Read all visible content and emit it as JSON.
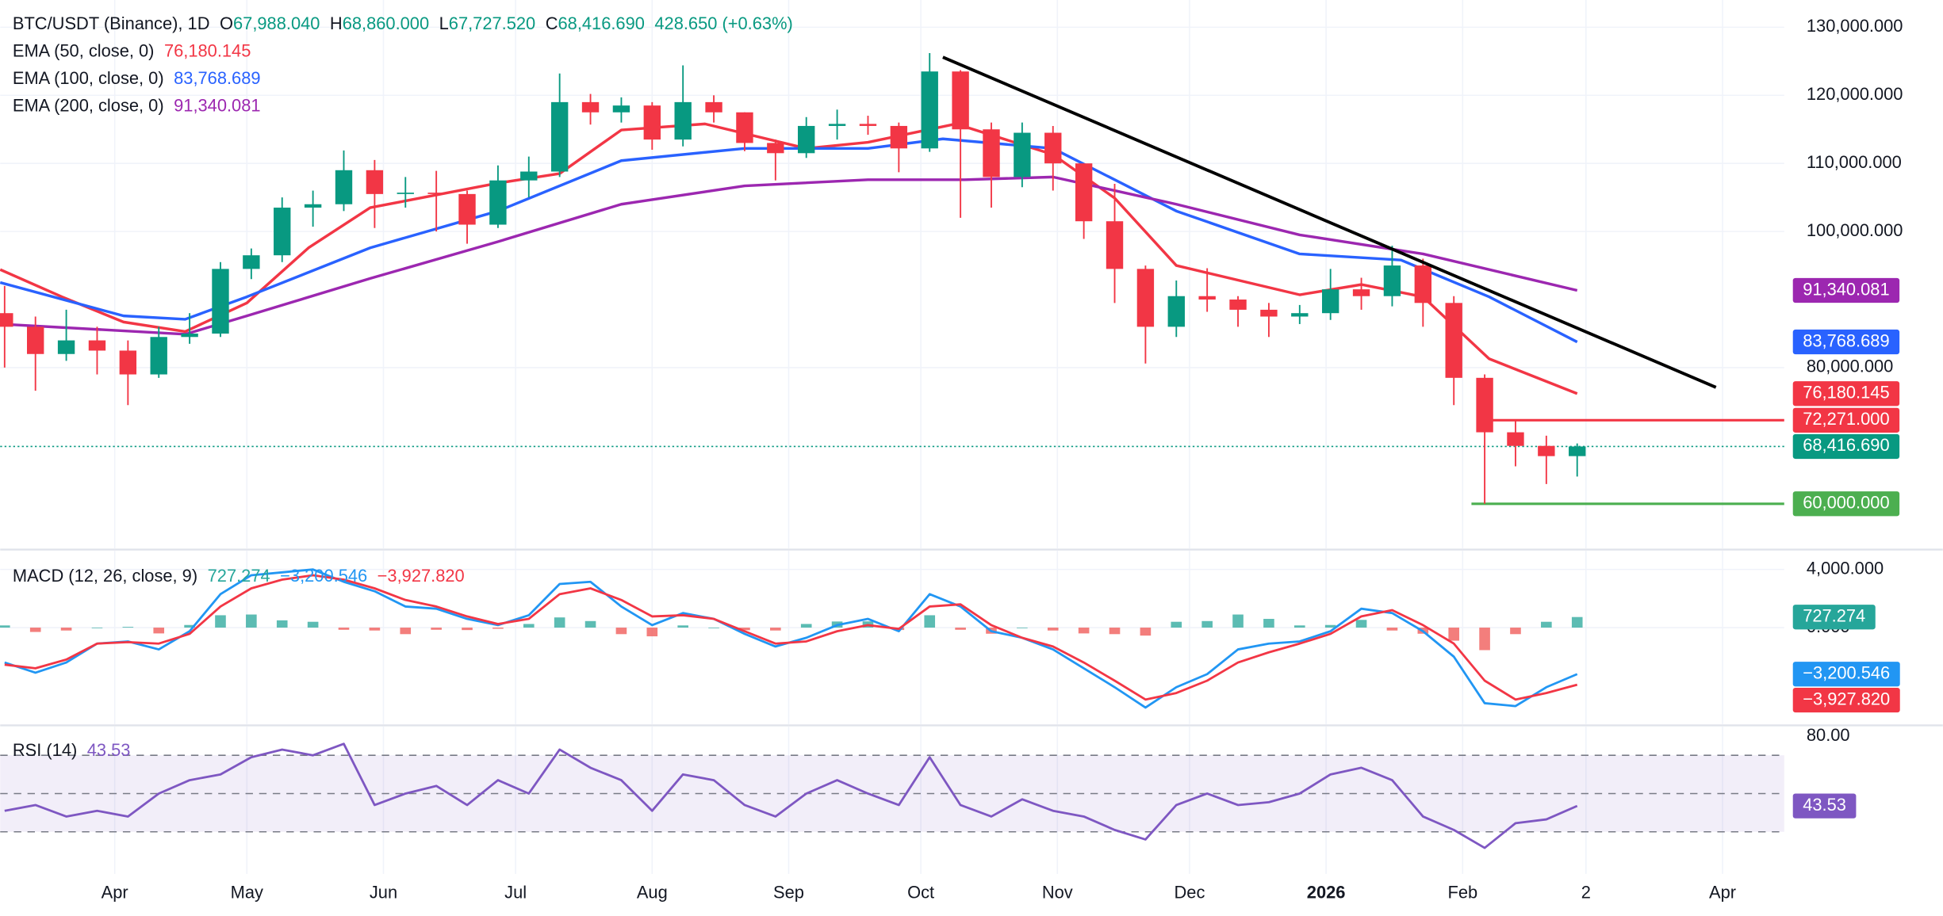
{
  "chart_data": [
    {
      "type": "candlestick",
      "title": "BTC/USDT (Binance), 1D",
      "ohlc": [
        {
          "label": "O",
          "value": "67,988.040"
        },
        {
          "label": "H",
          "value": "68,860.000"
        },
        {
          "label": "L",
          "value": "67,727.520"
        },
        {
          "label": "C",
          "value": "68,416.690"
        }
      ],
      "change": "428.650 (+0.63%)",
      "change_color": "#089981",
      "up_color": "#089981",
      "down_color": "#f23645",
      "xlim": [
        5,
        410
      ],
      "ylim": [
        53450,
        134000
      ],
      "yticks": [
        {
          "value": 80000,
          "label": "80,000.000"
        },
        {
          "value": 100000,
          "label": "100,000.000"
        },
        {
          "value": 110000,
          "label": "110,000.000"
        },
        {
          "value": 120000,
          "label": "120,000.000"
        },
        {
          "value": 130000,
          "label": "130,000.000"
        }
      ],
      "grid": true,
      "x": [
        6,
        13,
        20,
        27,
        34,
        41,
        48,
        55,
        62,
        69,
        76,
        83,
        90,
        97,
        104,
        111,
        118,
        125,
        132,
        139,
        146,
        153,
        160,
        167,
        174,
        181,
        188,
        195,
        202,
        209,
        216,
        223,
        230,
        237,
        244,
        251,
        258,
        265,
        272,
        279,
        286,
        293,
        300,
        307,
        314,
        321,
        328,
        335,
        342,
        349,
        356,
        363
      ],
      "open": [
        88000,
        86000,
        82000,
        84000,
        82500,
        79000,
        84500,
        85000,
        94500,
        96500,
        103500,
        104000,
        109000,
        105500,
        105700,
        105500,
        101000,
        107500,
        108800,
        119000,
        117500,
        118500,
        113500,
        119000,
        117500,
        113000,
        111500,
        115500,
        115800,
        115500,
        112200,
        123500,
        115000,
        108000,
        114500,
        110000,
        101500,
        94500,
        86000,
        90500,
        90000,
        88500,
        87500,
        88000,
        91500,
        90500,
        95000,
        89500,
        78500,
        70500,
        68500,
        67000
      ],
      "high": [
        92000,
        87500,
        88500,
        86000,
        84000,
        86000,
        88000,
        95500,
        97500,
        105000,
        106000,
        111900,
        110500,
        108000,
        108900,
        106000,
        109700,
        111000,
        123200,
        120200,
        119700,
        119000,
        124400,
        120000,
        117500,
        113500,
        116800,
        117900,
        117000,
        116000,
        126200,
        123700,
        116000,
        116000,
        115500,
        110000,
        107000,
        95000,
        92800,
        94600,
        90500,
        89500,
        89200,
        94500,
        93200,
        97900,
        96000,
        90500,
        79000,
        72300,
        70000,
        68860
      ],
      "low": [
        80000,
        76600,
        81000,
        79000,
        74500,
        78500,
        83500,
        84500,
        93000,
        95500,
        100700,
        103000,
        100500,
        103500,
        100000,
        98200,
        100500,
        105000,
        108000,
        115700,
        116000,
        112000,
        112500,
        116000,
        111800,
        107500,
        110800,
        113500,
        114200,
        108700,
        111700,
        102000,
        103500,
        106500,
        106000,
        98900,
        89500,
        80600,
        84500,
        88200,
        86000,
        84500,
        86400,
        87000,
        88500,
        89000,
        86000,
        74500,
        60000,
        65500,
        62900,
        64000
      ],
      "close": [
        86000,
        82000,
        84000,
        82500,
        79000,
        84500,
        85000,
        94500,
        96500,
        103500,
        104000,
        109000,
        105500,
        105700,
        105500,
        101000,
        107500,
        108800,
        119000,
        117500,
        118500,
        113500,
        119000,
        117500,
        113000,
        111500,
        115500,
        115800,
        115500,
        112200,
        123500,
        115000,
        108000,
        114500,
        110000,
        101500,
        94500,
        86000,
        90500,
        90000,
        88500,
        87500,
        88000,
        91500,
        90500,
        95000,
        89500,
        78500,
        70500,
        68500,
        67000,
        68416.69
      ],
      "series": [
        {
          "name": "EMA (50, close, 0)",
          "color": "#f23645",
          "last_label": "76,180.145",
          "x": [
            5,
            19,
            33,
            47,
            61,
            75,
            89,
            118,
            132,
            146,
            165,
            188,
            202,
            222,
            244,
            258,
            272,
            300,
            314,
            328,
            343,
            363
          ],
          "values": [
            94400,
            90400,
            86700,
            85300,
            89500,
            97600,
            103500,
            107100,
            108500,
            114900,
            115800,
            112200,
            113100,
            115800,
            111300,
            104900,
            95000,
            90700,
            92200,
            90400,
            81300,
            76180.145
          ]
        },
        {
          "name": "EMA (100, close, 0)",
          "color": "#2962ff",
          "last_label": "83,768.689",
          "x": [
            5,
            33,
            47,
            61,
            89,
            118,
            146,
            174,
            202,
            219,
            244,
            272,
            300,
            323,
            343,
            363
          ],
          "values": [
            92500,
            87600,
            87100,
            90400,
            97600,
            103000,
            110400,
            112200,
            112200,
            113600,
            112200,
            103000,
            96700,
            95800,
            90400,
            83768.689
          ]
        },
        {
          "name": "EMA (200, close, 0)",
          "color": "#9c27b0",
          "last_label": "91,340.081",
          "x": [
            5,
            47,
            61,
            89,
            118,
            146,
            174,
            202,
            224,
            244,
            272,
            300,
            328,
            363
          ],
          "values": [
            86400,
            84900,
            87600,
            93100,
            98500,
            104000,
            106700,
            107600,
            107600,
            108000,
            104000,
            99500,
            96700,
            91340.081
          ]
        }
      ],
      "trendline": {
        "color": "#000000",
        "x": [
          219,
          394.5
        ],
        "y": [
          125600,
          77100
        ]
      },
      "levels": [
        {
          "value": 72271,
          "label": "72,271.000",
          "color": "#f23645",
          "from": 341.6
        },
        {
          "value": 68416.69,
          "label": "68,416.690",
          "color": "#089981",
          "style": "dotted"
        },
        {
          "value": 60000,
          "label": "60,000.000",
          "color": "#4caf50",
          "from": 339
        }
      ]
    },
    {
      "type": "macd",
      "title": "MACD (12, 26, close, 9)",
      "xlim": [
        5,
        410
      ],
      "ylim": [
        -6640,
        5280
      ],
      "yticks": [
        {
          "value": 4000,
          "label": "4,000.000"
        },
        {
          "value": 0,
          "label": "0.000"
        }
      ],
      "grid": true,
      "x": [
        6,
        13,
        20,
        27,
        34,
        41,
        48,
        55,
        62,
        69,
        76,
        83,
        90,
        97,
        104,
        111,
        118,
        125,
        132,
        139,
        146,
        153,
        160,
        167,
        174,
        181,
        188,
        195,
        202,
        209,
        216,
        223,
        230,
        237,
        244,
        251,
        258,
        265,
        272,
        279,
        286,
        293,
        300,
        307,
        314,
        321,
        328,
        335,
        342,
        349,
        356,
        363
      ],
      "histogram": {
        "color": "#26a69a",
        "negative_color": "#ef5350",
        "last_label": "727.274",
        "values": [
          150,
          -300,
          -200,
          0,
          50,
          -400,
          180,
          850,
          900,
          500,
          400,
          -150,
          -200,
          -450,
          -150,
          -170,
          -80,
          250,
          700,
          450,
          -450,
          -600,
          150,
          0,
          -180,
          -200,
          250,
          420,
          430,
          -165,
          850,
          -150,
          -420,
          0,
          -200,
          -400,
          -450,
          -550,
          400,
          450,
          900,
          600,
          150,
          180,
          530,
          -200,
          -420,
          -900,
          -1550,
          -450,
          400,
          727.274
        ]
      },
      "series": [
        {
          "color": "#2196f3",
          "last_label": "−3,200.546",
          "values": [
            -2400,
            -3100,
            -2400,
            -1100,
            -950,
            -1500,
            -250,
            2300,
            3600,
            3800,
            4000,
            3150,
            2500,
            1450,
            1300,
            600,
            170,
            850,
            3000,
            3150,
            1450,
            170,
            1000,
            600,
            -430,
            -1300,
            -700,
            170,
            600,
            -250,
            2300,
            1450,
            -250,
            -700,
            -1500,
            -2800,
            -4100,
            -5500,
            -4100,
            -3200,
            -1500,
            -1100,
            -950,
            -250,
            1300,
            1000,
            -250,
            -2000,
            -5200,
            -5400,
            -4100,
            -3200.546
          ]
        },
        {
          "color": "#f23645",
          "last_label": "−3,927.820",
          "values": [
            -2550,
            -2800,
            -2200,
            -1100,
            -1000,
            -1100,
            -430,
            1450,
            2700,
            3300,
            3600,
            3300,
            2700,
            1900,
            1450,
            770,
            250,
            600,
            2300,
            2700,
            1900,
            770,
            850,
            600,
            -250,
            -1100,
            -950,
            -250,
            170,
            -85,
            1450,
            1600,
            170,
            -700,
            -1300,
            -2400,
            -3650,
            -4950,
            -4500,
            -3650,
            -2400,
            -1700,
            -1100,
            -430,
            770,
            1200,
            170,
            -1100,
            -3650,
            -4950,
            -4500,
            -3927.82
          ]
        }
      ]
    },
    {
      "type": "line",
      "title": "RSI (14)",
      "xlim": [
        5,
        410
      ],
      "ylim": [
        8,
        85
      ],
      "yticks": [
        {
          "value": 80,
          "label": "80.00"
        }
      ],
      "levels": [
        70,
        50,
        30
      ],
      "band_color": "#7e57c2",
      "x": [
        6,
        13,
        20,
        27,
        34,
        41,
        48,
        55,
        62,
        69,
        76,
        83,
        90,
        97,
        104,
        111,
        118,
        125,
        132,
        139,
        146,
        153,
        160,
        167,
        174,
        181,
        188,
        195,
        202,
        209,
        216,
        223,
        230,
        237,
        244,
        251,
        258,
        265,
        272,
        279,
        286,
        293,
        300,
        307,
        314,
        321,
        328,
        335,
        342,
        349,
        356,
        363
      ],
      "series": [
        {
          "color": "#7e57c2",
          "last_label": "43.53",
          "values": [
            41,
            44,
            38,
            41,
            38,
            50,
            57,
            60,
            69,
            73,
            70,
            76,
            44,
            50,
            54,
            44,
            57,
            50,
            73,
            63.5,
            57,
            41,
            60,
            57,
            44,
            38,
            50,
            57,
            50,
            44,
            69,
            44,
            38,
            47,
            41,
            38,
            31,
            26,
            44,
            50,
            44,
            45.5,
            50,
            60,
            63.5,
            57,
            38,
            31,
            21.6,
            34.5,
            36.5,
            43.53
          ]
        }
      ],
      "xticks": [
        {
          "value": 31,
          "label": "Apr"
        },
        {
          "value": 61,
          "label": "May"
        },
        {
          "value": 92,
          "label": "Jun"
        },
        {
          "value": 122,
          "label": "Jul"
        },
        {
          "value": 153,
          "label": "Aug"
        },
        {
          "value": 184,
          "label": "Sep"
        },
        {
          "value": 214,
          "label": "Oct"
        },
        {
          "value": 245,
          "label": "Nov"
        },
        {
          "value": 275,
          "label": "Dec"
        },
        {
          "value": 306,
          "label": "2026",
          "bold": true
        },
        {
          "value": 337,
          "label": "Feb"
        },
        {
          "value": 365,
          "label": "2"
        },
        {
          "value": 396,
          "label": "Apr"
        }
      ]
    }
  ]
}
